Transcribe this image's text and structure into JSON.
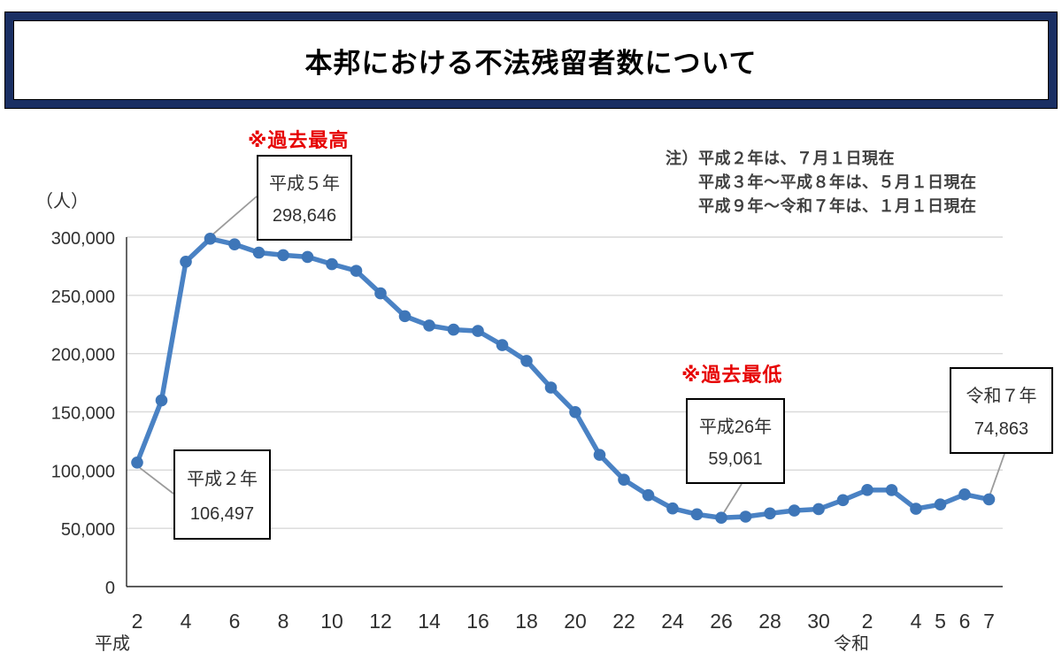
{
  "title": "本邦における不法残留者数について",
  "note": {
    "prefix": "注）",
    "lines": [
      "平成２年は、７月１日現在",
      "平成３年～平成８年は、５月１日現在",
      "平成９年～令和７年は、１月１日現在"
    ]
  },
  "flags": {
    "max_label": "※過去最高",
    "min_label": "※過去最低"
  },
  "annotations": [
    {
      "label": "平成５年",
      "value": "298,646"
    },
    {
      "label": "平成２年",
      "value": "106,497"
    },
    {
      "label": "平成26年",
      "value": "59,061"
    },
    {
      "label": "令和７年",
      "value": "74,863"
    }
  ],
  "colors": {
    "line_blue": "#4A82C4",
    "marker_blue": "#3E76B8",
    "flag_red": "#E60000",
    "title_border_navy": "#1A2F63",
    "grid_gray": "#D9D9D9",
    "axis_dark": "#262626",
    "leader_gray": "#9B9B9B"
  },
  "chart_data": {
    "type": "line",
    "title": "本邦における不法残留者数について",
    "unit_label": "（人）",
    "ylabel": "人",
    "ylim": [
      0,
      300000
    ],
    "y_ticks": [
      0,
      50000,
      100000,
      150000,
      200000,
      250000,
      300000
    ],
    "grid": true,
    "legend": "none",
    "x": [
      "平成2",
      "平成3",
      "平成4",
      "平成5",
      "平成6",
      "平成7",
      "平成8",
      "平成9",
      "平成10",
      "平成11",
      "平成12",
      "平成13",
      "平成14",
      "平成15",
      "平成16",
      "平成17",
      "平成18",
      "平成19",
      "平成20",
      "平成21",
      "平成22",
      "平成23",
      "平成24",
      "平成25",
      "平成26",
      "平成27",
      "平成28",
      "平成29",
      "平成30",
      "平成31",
      "令和2",
      "令和3",
      "令和4",
      "令和5",
      "令和6",
      "令和7"
    ],
    "x_ticks": [
      {
        "index": 0,
        "label": "2"
      },
      {
        "index": 2,
        "label": "4"
      },
      {
        "index": 4,
        "label": "6"
      },
      {
        "index": 6,
        "label": "8"
      },
      {
        "index": 8,
        "label": "10"
      },
      {
        "index": 10,
        "label": "12"
      },
      {
        "index": 12,
        "label": "14"
      },
      {
        "index": 14,
        "label": "16"
      },
      {
        "index": 16,
        "label": "18"
      },
      {
        "index": 18,
        "label": "20"
      },
      {
        "index": 20,
        "label": "22"
      },
      {
        "index": 22,
        "label": "24"
      },
      {
        "index": 24,
        "label": "26"
      },
      {
        "index": 26,
        "label": "28"
      },
      {
        "index": 28,
        "label": "30"
      },
      {
        "index": 30,
        "label": "2"
      },
      {
        "index": 32,
        "label": "4"
      },
      {
        "index": 33,
        "label": "5"
      },
      {
        "index": 34,
        "label": "6"
      },
      {
        "index": 35,
        "label": "7"
      }
    ],
    "era_labels": [
      {
        "index": 0,
        "dx": -28,
        "label": "平成"
      },
      {
        "index": 30,
        "dx": -18,
        "label": "令和"
      }
    ],
    "series": [
      {
        "name": "不法残留者数",
        "values": [
          106497,
          159828,
          278892,
          298646,
          293800,
          286704,
          284500,
          282986,
          276810,
          271048,
          251697,
          232121,
          224067,
          220552,
          219418,
          207299,
          193745,
          170839,
          149785,
          113072,
          91778,
          78488,
          67065,
          62009,
          59061,
          60007,
          62818,
          65270,
          66498,
          74167,
          82892,
          82868,
          66759,
          70491,
          79113,
          74863
        ]
      }
    ]
  }
}
